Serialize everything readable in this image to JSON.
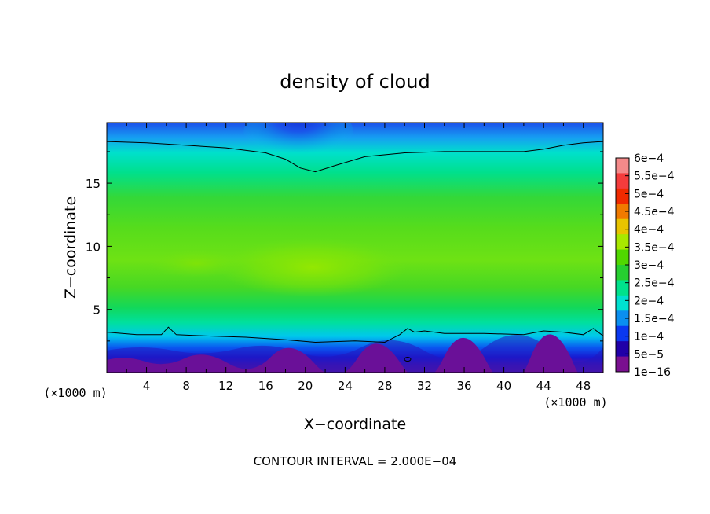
{
  "chart_data": {
    "type": "heatmap",
    "title": "density of cloud",
    "xlabel": "X−coordinate",
    "ylabel": "Z−coordinate",
    "x_unit_label": "(×1000 m)",
    "z_unit_label": "(×1000 m)",
    "xlim": [
      0,
      50
    ],
    "ylim": [
      0,
      19.8
    ],
    "x_ticks": [
      "4",
      "8",
      "12",
      "16",
      "20",
      "24",
      "28",
      "32",
      "36",
      "40",
      "44",
      "48"
    ],
    "y_ticks": [
      "5",
      "10",
      "15"
    ],
    "footer": "CONTOUR INTERVAL = 2.000E−04",
    "colorbar": {
      "labels": [
        "6e−4",
        "5.5e−4",
        "5e−4",
        "4.5e−4",
        "4e−4",
        "3.5e−4",
        "3e−4",
        "2.5e−4",
        "2e−4",
        "1.5e−4",
        "1e−4",
        "5e−5",
        "1e−16"
      ],
      "colors": [
        "#f48a8a",
        "#f43c3c",
        "#f02a00",
        "#f07a00",
        "#e8c400",
        "#a8e800",
        "#50d800",
        "#26cf30",
        "#00e28c",
        "#00e0d0",
        "#0a8ff0",
        "#0a38f0",
        "#2000a8",
        "#7a1090"
      ]
    },
    "contours": [
      {
        "level": "2e−4",
        "x": [
          0,
          4,
          8,
          12,
          16,
          18,
          19.5,
          21,
          23,
          26,
          30,
          34,
          38,
          42,
          44,
          46,
          48,
          50
        ],
        "z": [
          18.3,
          18.2,
          18.0,
          17.8,
          17.4,
          16.9,
          16.2,
          15.9,
          16.4,
          17.1,
          17.4,
          17.5,
          17.5,
          17.5,
          17.7,
          18.0,
          18.2,
          18.3
        ]
      },
      {
        "level": "5e−5",
        "x": [
          0,
          3,
          5.5,
          6.2,
          7,
          10,
          14,
          18,
          21,
          25,
          28,
          29.5,
          30.3,
          31,
          32,
          34,
          38,
          42,
          44,
          46,
          48,
          49,
          50
        ],
        "z": [
          3.2,
          3.0,
          3.0,
          3.6,
          3.0,
          2.9,
          2.8,
          2.6,
          2.4,
          2.5,
          2.4,
          3.0,
          3.5,
          3.2,
          3.3,
          3.1,
          3.1,
          3.0,
          3.3,
          3.2,
          3.0,
          3.5,
          2.9
        ]
      }
    ]
  }
}
